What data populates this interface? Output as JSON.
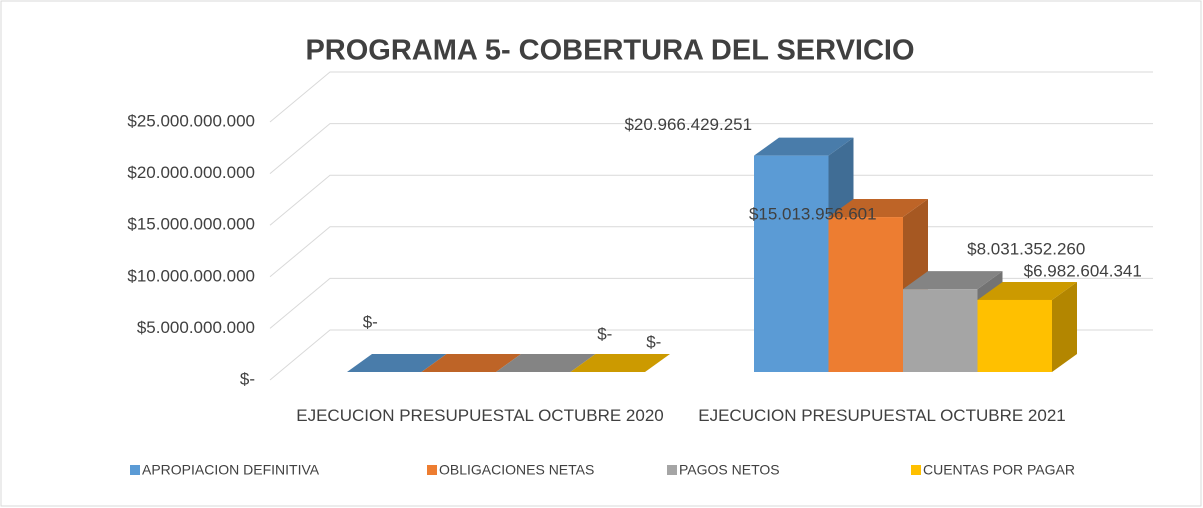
{
  "chart_data": {
    "type": "bar3d",
    "title": "PROGRAMA 5- COBERTURA DEL SERVICIO",
    "categories": [
      "EJECUCION PRESUPUESTAL OCTUBRE 2020",
      "EJECUCION PRESUPUESTAL OCTUBRE 2021"
    ],
    "series": [
      {
        "name": "APROPIACION DEFINITIVA",
        "color": "#5b9bd5",
        "values": [
          0,
          20966429251
        ],
        "value_labels": [
          "$-",
          "$20.966.429.251"
        ]
      },
      {
        "name": "OBLIGACIONES NETAS",
        "color": "#ed7d31",
        "values": [
          0,
          15013956601
        ],
        "value_labels": [
          "$-",
          "$15.013.956.601"
        ]
      },
      {
        "name": "PAGOS NETOS",
        "color": "#a5a5a5",
        "values": [
          0,
          8031352260
        ],
        "value_labels": [
          null,
          "$8.031.352.260"
        ]
      },
      {
        "name": "CUENTAS POR PAGAR",
        "color": "#ffc000",
        "values": [
          0,
          6982604341
        ],
        "value_labels": [
          "$-",
          "$6.982.604.341"
        ]
      }
    ],
    "ylim": [
      0,
      25000000000
    ],
    "yticks": [
      {
        "value": 0,
        "label": "$-"
      },
      {
        "value": 5000000000,
        "label": "$5.000.000.000"
      },
      {
        "value": 10000000000,
        "label": "$10.000.000.000"
      },
      {
        "value": 15000000000,
        "label": "$15.000.000.000"
      },
      {
        "value": 20000000000,
        "label": "$20.000.000.000"
      },
      {
        "value": 25000000000,
        "label": "$25.000.000.000"
      }
    ],
    "grid": true,
    "legend": "bottom"
  }
}
